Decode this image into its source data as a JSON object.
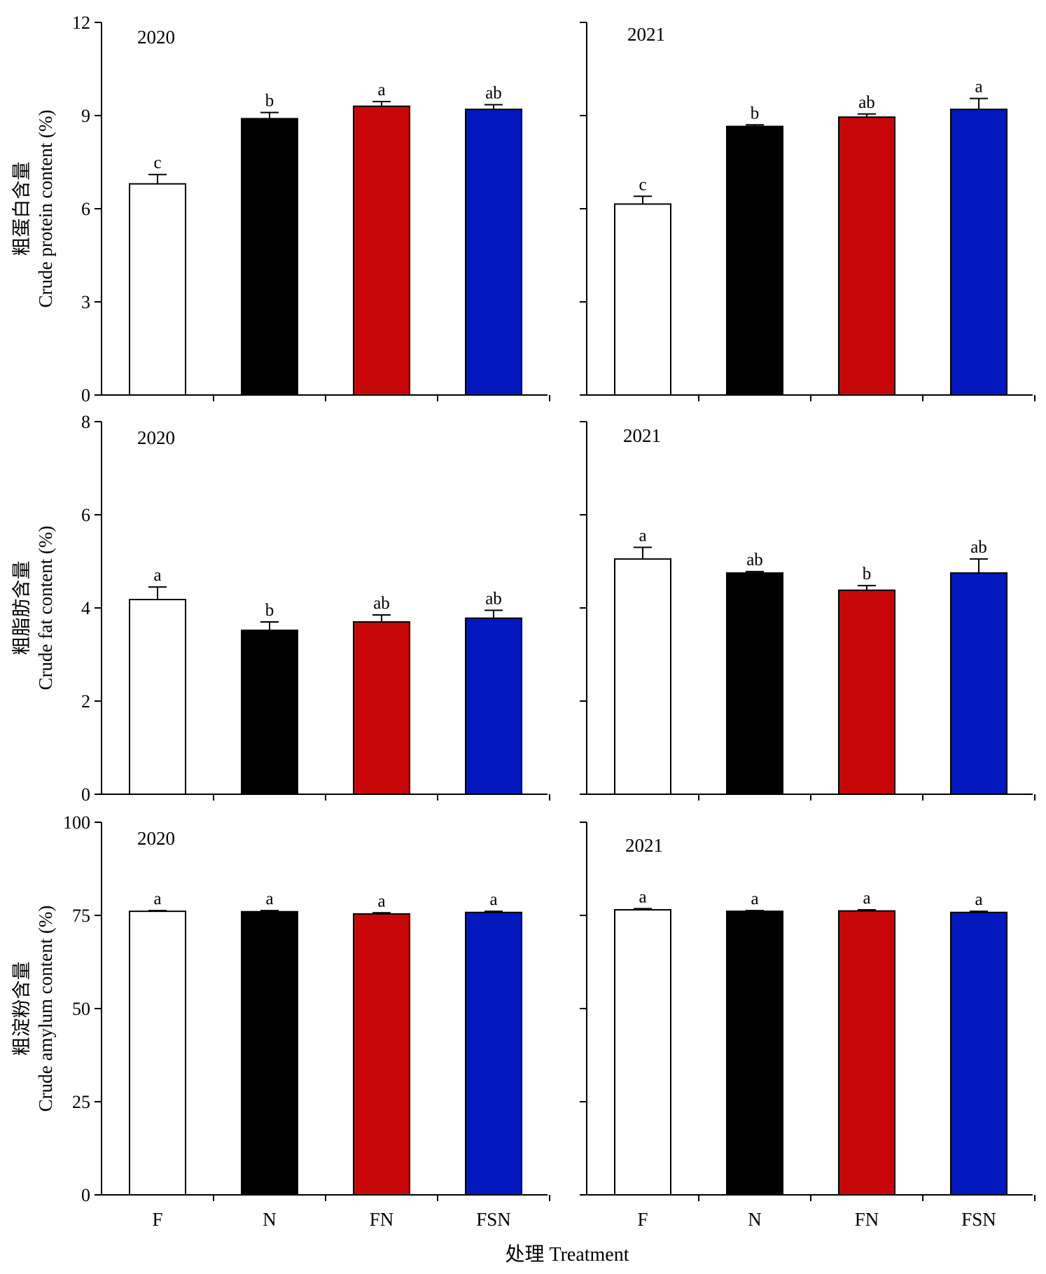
{
  "chart_data": [
    {
      "type": "bar",
      "title": "2020",
      "ylabel": [
        "粗蛋白含量",
        "Crude protein content (%)"
      ],
      "categories": [
        "F",
        "N",
        "FN",
        "FSN"
      ],
      "values": [
        6.8,
        8.9,
        9.3,
        9.2
      ],
      "errors": [
        0.3,
        0.2,
        0.15,
        0.15
      ],
      "letters": [
        "c",
        "b",
        "a",
        "ab"
      ],
      "ylim": [
        0,
        12
      ],
      "yticks": [
        0,
        3,
        6,
        9,
        12
      ]
    },
    {
      "type": "bar",
      "title": "2021",
      "ylabel": null,
      "categories": [
        "F",
        "N",
        "FN",
        "FSN"
      ],
      "values": [
        6.15,
        8.65,
        8.95,
        9.2
      ],
      "errors": [
        0.25,
        0.05,
        0.1,
        0.35
      ],
      "letters": [
        "c",
        "b",
        "ab",
        "a"
      ],
      "ylim": [
        0,
        12
      ],
      "yticks": [
        0,
        3,
        6,
        9,
        12
      ]
    },
    {
      "type": "bar",
      "title": "2020",
      "ylabel": [
        "粗脂肪含量",
        "Crude fat content (%)"
      ],
      "categories": [
        "F",
        "N",
        "FN",
        "FSN"
      ],
      "values": [
        4.18,
        3.52,
        3.7,
        3.78
      ],
      "errors": [
        0.27,
        0.18,
        0.15,
        0.17
      ],
      "letters": [
        "a",
        "b",
        "ab",
        "ab"
      ],
      "ylim": [
        0,
        8
      ],
      "yticks": [
        0,
        2,
        4,
        6,
        8
      ]
    },
    {
      "type": "bar",
      "title": "2021",
      "ylabel": null,
      "categories": [
        "F",
        "N",
        "FN",
        "FSN"
      ],
      "values": [
        5.05,
        4.75,
        4.38,
        4.75
      ],
      "errors": [
        0.25,
        0.03,
        0.1,
        0.3
      ],
      "letters": [
        "a",
        "ab",
        "b",
        "ab"
      ],
      "ylim": [
        0,
        8
      ],
      "yticks": [
        0,
        2,
        4,
        6,
        8
      ]
    },
    {
      "type": "bar",
      "title": "2020",
      "ylabel": [
        "粗淀粉含量",
        "Crude amylum content (%)"
      ],
      "categories": [
        "F",
        "N",
        "FN",
        "FSN"
      ],
      "values": [
        76.1,
        76.0,
        75.4,
        75.8
      ],
      "errors": [
        0.2,
        0.3,
        0.3,
        0.3
      ],
      "letters": [
        "a",
        "a",
        "a",
        "a"
      ],
      "ylim": [
        0,
        100
      ],
      "yticks": [
        0,
        25,
        50,
        75,
        100
      ]
    },
    {
      "type": "bar",
      "title": "2021",
      "ylabel": null,
      "categories": [
        "F",
        "N",
        "FN",
        "FSN"
      ],
      "values": [
        76.5,
        76.1,
        76.2,
        75.8
      ],
      "errors": [
        0.3,
        0.2,
        0.3,
        0.3
      ],
      "letters": [
        "a",
        "a",
        "a",
        "a"
      ],
      "ylim": [
        0,
        100
      ],
      "yticks": [
        0,
        25,
        50,
        75,
        100
      ]
    }
  ],
  "xlabel": "处理 Treatment",
  "bar_colors": [
    "#ffffff",
    "#000000",
    "#c80808",
    "#0219bf"
  ]
}
